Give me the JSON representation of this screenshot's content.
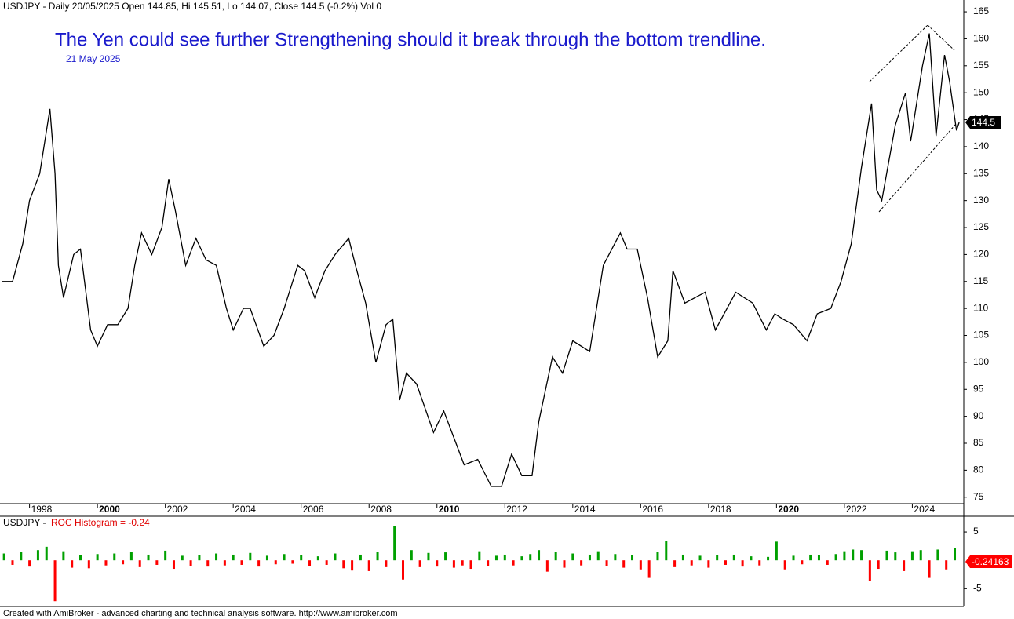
{
  "header": "USDJPY - Daily 20/05/2025 Open 144.85, Hi 145.51, Lo 144.07, Close 144.5 (-0.2%) Vol 0",
  "annotation": "The Yen could see further Strengthening should it break through the bottom trendline.",
  "annotation_date": "21 May 2025",
  "footer": "Created with AmiBroker - advanced charting and technical analysis software. http://www.amibroker.com",
  "chart_data": [
    {
      "type": "line",
      "color": "#000000",
      "x": [
        1997.2,
        1997.5,
        1997.8,
        1998.0,
        1998.3,
        1998.6,
        1998.75,
        1998.85,
        1999.0,
        1999.3,
        1999.5,
        1999.8,
        2000.0,
        2000.3,
        2000.6,
        2000.9,
        2001.1,
        2001.3,
        2001.6,
        2001.9,
        2002.1,
        2002.3,
        2002.6,
        2002.9,
        2003.2,
        2003.5,
        2003.8,
        2004.0,
        2004.3,
        2004.5,
        2004.9,
        2005.2,
        2005.5,
        2005.9,
        2006.1,
        2006.4,
        2006.7,
        2007.0,
        2007.4,
        2007.6,
        2007.9,
        2008.2,
        2008.5,
        2008.7,
        2008.9,
        2009.1,
        2009.4,
        2009.9,
        2010.2,
        2010.5,
        2010.8,
        2011.2,
        2011.6,
        2011.9,
        2012.2,
        2012.5,
        2012.8,
        2013.0,
        2013.4,
        2013.7,
        2014.0,
        2014.5,
        2014.9,
        2015.4,
        2015.6,
        2015.9,
        2016.2,
        2016.5,
        2016.8,
        2016.95,
        2017.3,
        2017.9,
        2018.2,
        2018.8,
        2019.3,
        2019.7,
        2019.95,
        2020.2,
        2020.5,
        2020.9,
        2021.2,
        2021.6,
        2021.9,
        2022.2,
        2022.5,
        2022.8,
        2022.95,
        2023.1,
        2023.5,
        2023.8,
        2023.95,
        2024.3,
        2024.5,
        2024.7,
        2024.95,
        2025.1,
        2025.3,
        2025.38
      ],
      "values": [
        115,
        115,
        122,
        130,
        135,
        147,
        135,
        118,
        112,
        120,
        121,
        106,
        103,
        107,
        107,
        110,
        118,
        124,
        120,
        125,
        134,
        128,
        118,
        123,
        119,
        118,
        110,
        106,
        110,
        110,
        103,
        105,
        110,
        118,
        117,
        112,
        117,
        120,
        123,
        118,
        111,
        100,
        107,
        108,
        93,
        98,
        96,
        87,
        91,
        86,
        81,
        82,
        77,
        77,
        83,
        79,
        79,
        89,
        101,
        98,
        104,
        102,
        118,
        124,
        121,
        121,
        112,
        101,
        104,
        117,
        111,
        113,
        106,
        113,
        111,
        106,
        109,
        108,
        107,
        104,
        109,
        110,
        115,
        122,
        136,
        148,
        132,
        130,
        144,
        150,
        141,
        155,
        161,
        142,
        157,
        152,
        143,
        144.5
      ],
      "price_marker": 144.5,
      "xlim": [
        1997.2,
        2025.4
      ],
      "xticks": [
        1998,
        2000,
        2002,
        2004,
        2006,
        2008,
        2010,
        2012,
        2014,
        2016,
        2018,
        2020,
        2022,
        2024
      ],
      "ylim": [
        73.8,
        166.9
      ],
      "yticks": [
        75,
        80,
        85,
        90,
        95,
        100,
        105,
        110,
        115,
        120,
        125,
        130,
        135,
        140,
        145,
        150,
        155,
        160,
        165
      ]
    },
    {
      "type": "histogram",
      "label_prefix": "USDJPY - ",
      "title": "ROC Histogram = -0.24",
      "up_color": "#00a000",
      "down_color": "#ff0000",
      "x": [
        1997.25,
        1997.5,
        1997.75,
        1998,
        1998.25,
        1998.5,
        1998.75,
        1999,
        1999.25,
        1999.5,
        1999.75,
        2000,
        2000.25,
        2000.5,
        2000.75,
        2001,
        2001.25,
        2001.5,
        2001.75,
        2002,
        2002.25,
        2002.5,
        2002.75,
        2003,
        2003.25,
        2003.5,
        2003.75,
        2004,
        2004.25,
        2004.5,
        2004.75,
        2005,
        2005.25,
        2005.5,
        2005.75,
        2006,
        2006.25,
        2006.5,
        2006.75,
        2007,
        2007.25,
        2007.5,
        2007.75,
        2008,
        2008.25,
        2008.5,
        2008.75,
        2009,
        2009.25,
        2009.5,
        2009.75,
        2010,
        2010.25,
        2010.5,
        2010.75,
        2011,
        2011.25,
        2011.5,
        2011.75,
        2012,
        2012.25,
        2012.5,
        2012.75,
        2013,
        2013.25,
        2013.5,
        2013.75,
        2014,
        2014.25,
        2014.5,
        2014.75,
        2015,
        2015.25,
        2015.5,
        2015.75,
        2016,
        2016.25,
        2016.5,
        2016.75,
        2017,
        2017.25,
        2017.5,
        2017.75,
        2018,
        2018.25,
        2018.5,
        2018.75,
        2019,
        2019.25,
        2019.5,
        2019.75,
        2020,
        2020.25,
        2020.5,
        2020.75,
        2021,
        2021.25,
        2021.5,
        2021.75,
        2022,
        2022.25,
        2022.5,
        2022.75,
        2023,
        2023.25,
        2023.5,
        2023.75,
        2024,
        2024.25,
        2024.5,
        2024.75,
        2025,
        2025.25
      ],
      "values": [
        1.2,
        -0.8,
        1.5,
        -1.1,
        1.8,
        2.4,
        -7.2,
        1.6,
        -1.3,
        0.9,
        -1.4,
        1.1,
        -0.9,
        1.2,
        -0.7,
        1.5,
        -1.2,
        1.0,
        -0.8,
        1.7,
        -1.5,
        0.8,
        -1.0,
        0.9,
        -1.1,
        1.2,
        -0.9,
        1.0,
        -0.8,
        1.3,
        -1.1,
        0.8,
        -0.7,
        1.1,
        -0.6,
        0.9,
        -1.0,
        0.7,
        -0.8,
        1.2,
        -1.4,
        -1.8,
        1.0,
        -1.9,
        1.5,
        -1.2,
        6.0,
        -3.4,
        1.8,
        -1.2,
        1.3,
        -1.1,
        1.4,
        -1.3,
        -0.9,
        -1.5,
        1.6,
        -1.0,
        0.8,
        1.0,
        -0.9,
        0.7,
        1.1,
        1.8,
        -2.0,
        1.5,
        -1.3,
        1.2,
        -0.9,
        1.0,
        1.6,
        -1.0,
        1.1,
        -1.3,
        0.9,
        -1.6,
        -3.1,
        1.5,
        3.4,
        -1.2,
        1.0,
        -0.9,
        0.8,
        -1.3,
        0.9,
        -0.8,
        1.0,
        -1.1,
        0.7,
        -0.9,
        0.6,
        3.3,
        -1.6,
        0.8,
        -0.7,
        1.0,
        0.9,
        -0.8,
        1.1,
        1.6,
        1.9,
        1.8,
        -3.6,
        -1.5,
        1.7,
        1.4,
        -1.9,
        1.6,
        1.8,
        -3.1,
        1.9,
        -1.6,
        2.2
      ],
      "roc_marker": -0.24163,
      "xlim": [
        1997.2,
        2025.4
      ],
      "ylim": [
        -8,
        7.5
      ],
      "yticks": [
        -5,
        5
      ]
    }
  ]
}
